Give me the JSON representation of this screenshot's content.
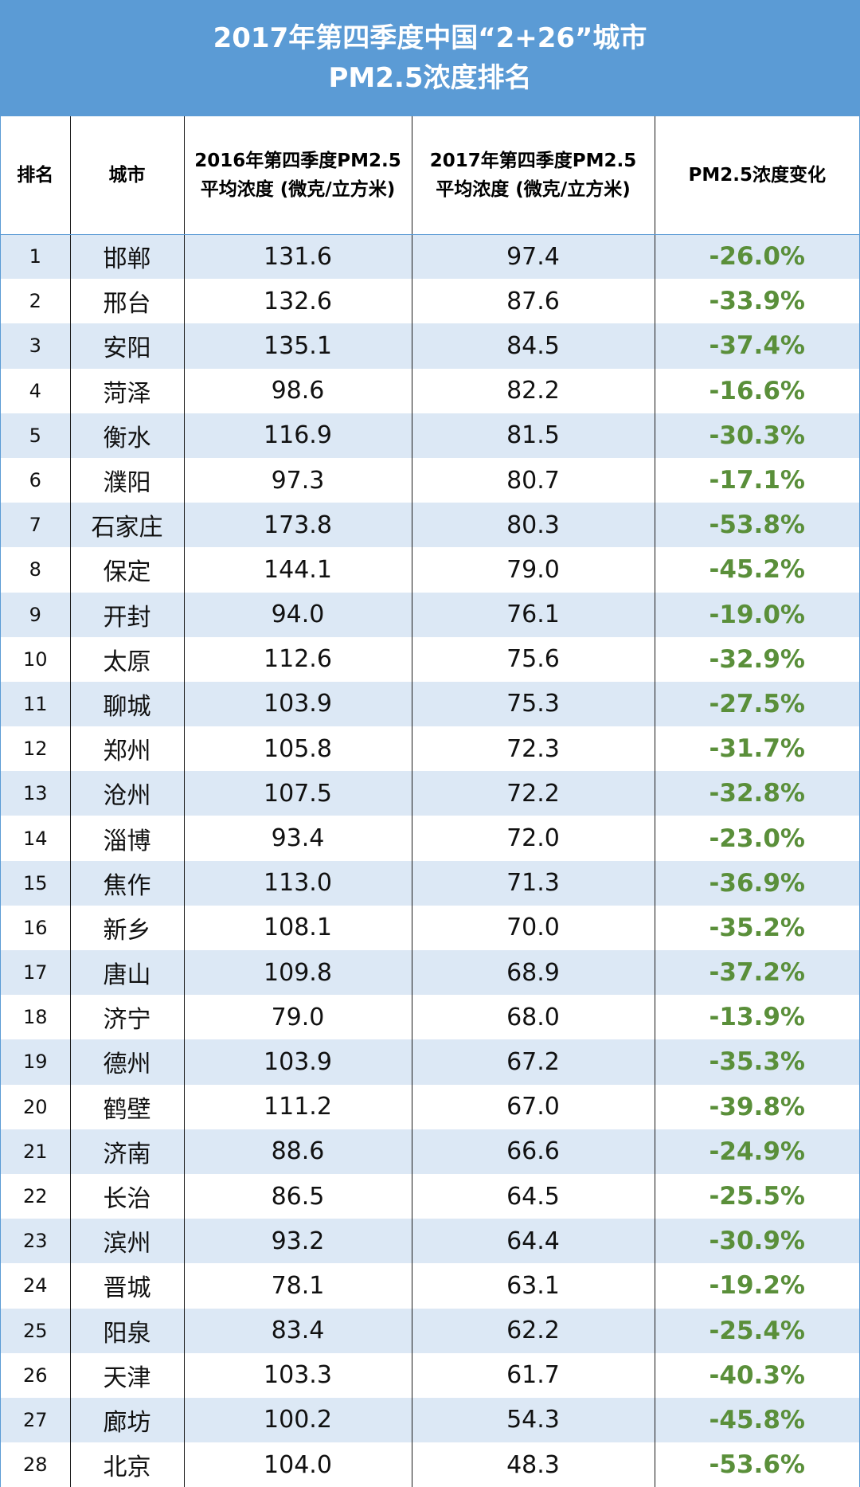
{
  "title": {
    "line1": "2017年第四季度中国“2+26”城市",
    "line2": "PM2.5浓度排名"
  },
  "headers": {
    "rank": "排名",
    "city": "城市",
    "pm2016_line1": "2016年第四季度PM2.5",
    "pm2016_line2": "平均浓度 (微克/立方米)",
    "pm2017_line1": "2017年第四季度PM2.5",
    "pm2017_line2": "平均浓度 (微克/立方米)",
    "change": "PM2.5浓度变化"
  },
  "colors": {
    "title_background": "#5b9bd5",
    "stripe": "#dce8f5",
    "change_text": "#5a8f3a"
  },
  "rows": [
    {
      "rank": "1",
      "city": "邯郸",
      "pm2016": "131.6",
      "pm2017": "97.4",
      "change": "-26.0%"
    },
    {
      "rank": "2",
      "city": "邢台",
      "pm2016": "132.6",
      "pm2017": "87.6",
      "change": "-33.9%"
    },
    {
      "rank": "3",
      "city": "安阳",
      "pm2016": "135.1",
      "pm2017": "84.5",
      "change": "-37.4%"
    },
    {
      "rank": "4",
      "city": "菏泽",
      "pm2016": "98.6",
      "pm2017": "82.2",
      "change": "-16.6%"
    },
    {
      "rank": "5",
      "city": "衡水",
      "pm2016": "116.9",
      "pm2017": "81.5",
      "change": "-30.3%"
    },
    {
      "rank": "6",
      "city": "濮阳",
      "pm2016": "97.3",
      "pm2017": "80.7",
      "change": "-17.1%"
    },
    {
      "rank": "7",
      "city": "石家庄",
      "pm2016": "173.8",
      "pm2017": "80.3",
      "change": "-53.8%"
    },
    {
      "rank": "8",
      "city": "保定",
      "pm2016": "144.1",
      "pm2017": "79.0",
      "change": "-45.2%"
    },
    {
      "rank": "9",
      "city": "开封",
      "pm2016": "94.0",
      "pm2017": "76.1",
      "change": "-19.0%"
    },
    {
      "rank": "10",
      "city": "太原",
      "pm2016": "112.6",
      "pm2017": "75.6",
      "change": "-32.9%"
    },
    {
      "rank": "11",
      "city": "聊城",
      "pm2016": "103.9",
      "pm2017": "75.3",
      "change": "-27.5%"
    },
    {
      "rank": "12",
      "city": "郑州",
      "pm2016": "105.8",
      "pm2017": "72.3",
      "change": "-31.7%"
    },
    {
      "rank": "13",
      "city": "沧州",
      "pm2016": "107.5",
      "pm2017": "72.2",
      "change": "-32.8%"
    },
    {
      "rank": "14",
      "city": "淄博",
      "pm2016": "93.4",
      "pm2017": "72.0",
      "change": "-23.0%"
    },
    {
      "rank": "15",
      "city": "焦作",
      "pm2016": "113.0",
      "pm2017": "71.3",
      "change": "-36.9%"
    },
    {
      "rank": "16",
      "city": "新乡",
      "pm2016": "108.1",
      "pm2017": "70.0",
      "change": "-35.2%"
    },
    {
      "rank": "17",
      "city": "唐山",
      "pm2016": "109.8",
      "pm2017": "68.9",
      "change": "-37.2%"
    },
    {
      "rank": "18",
      "city": "济宁",
      "pm2016": "79.0",
      "pm2017": "68.0",
      "change": "-13.9%"
    },
    {
      "rank": "19",
      "city": "德州",
      "pm2016": "103.9",
      "pm2017": "67.2",
      "change": "-35.3%"
    },
    {
      "rank": "20",
      "city": "鹤壁",
      "pm2016": "111.2",
      "pm2017": "67.0",
      "change": "-39.8%"
    },
    {
      "rank": "21",
      "city": "济南",
      "pm2016": "88.6",
      "pm2017": "66.6",
      "change": "-24.9%"
    },
    {
      "rank": "22",
      "city": "长治",
      "pm2016": "86.5",
      "pm2017": "64.5",
      "change": "-25.5%"
    },
    {
      "rank": "23",
      "city": "滨州",
      "pm2016": "93.2",
      "pm2017": "64.4",
      "change": "-30.9%"
    },
    {
      "rank": "24",
      "city": "晋城",
      "pm2016": "78.1",
      "pm2017": "63.1",
      "change": "-19.2%"
    },
    {
      "rank": "25",
      "city": "阳泉",
      "pm2016": "83.4",
      "pm2017": "62.2",
      "change": "-25.4%"
    },
    {
      "rank": "26",
      "city": "天津",
      "pm2016": "103.3",
      "pm2017": "61.7",
      "change": "-40.3%"
    },
    {
      "rank": "27",
      "city": "廊坊",
      "pm2016": "100.2",
      "pm2017": "54.3",
      "change": "-45.8%"
    },
    {
      "rank": "28",
      "city": "北京",
      "pm2016": "104.0",
      "pm2017": "48.3",
      "change": "-53.6%"
    }
  ]
}
